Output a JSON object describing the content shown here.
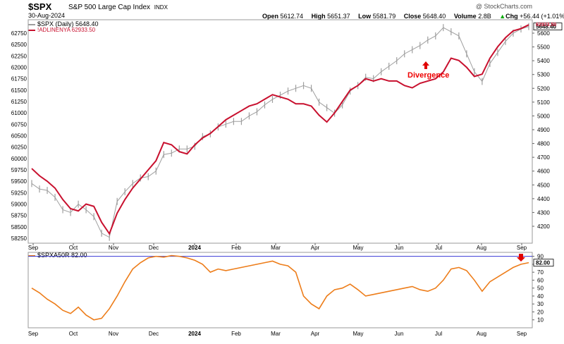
{
  "header": {
    "symbol": "$SPX",
    "description": "S&P 500 Large Cap Index",
    "exchange": "INDX",
    "date": "30-Aug-2024",
    "brand": "@ StockCharts.com",
    "open_label": "Open",
    "open": "5612.74",
    "high_label": "High",
    "high": "5651.37",
    "low_label": "Low",
    "low": "5581.79",
    "close_label": "Close",
    "close": "5648.40",
    "volume_label": "Volume",
    "volume": "2.8B",
    "chg_label": "Chg",
    "chg": "+56.44 (+1.01%)",
    "chg_arrow": "▲"
  },
  "legend": {
    "price": "$SPX (Daily) 5648.40",
    "adline": "!ADLINENYA 62933.50",
    "lower": "$SPXA50R 82.00"
  },
  "annotation": {
    "text": "Divergence"
  },
  "colors": {
    "price": "#9e9e9e",
    "adline": "#c8102e",
    "osc": "#ed7d1a",
    "refline": "#3a3ad6",
    "arrow": "#e00000"
  },
  "chart_data": [
    {
      "type": "line",
      "title": "$SPX S&P 500 Large Cap Index",
      "x_labels": [
        "Sep",
        "Oct",
        "Nov",
        "Dec",
        "2024",
        "Feb",
        "Mar",
        "Apr",
        "May",
        "Jun",
        "Jul",
        "Aug",
        "Sep"
      ],
      "left_axis_ticks": [
        "62750",
        "62500",
        "62250",
        "62000",
        "61750",
        "61500",
        "61250",
        "61000",
        "60750",
        "60500",
        "60250",
        "60000",
        "59750",
        "59500",
        "59250",
        "59000",
        "58750",
        "58500",
        "58250"
      ],
      "right_axis_ticks": [
        "5600",
        "5500",
        "5400",
        "5300",
        "5200",
        "5100",
        "5000",
        "4900",
        "4800",
        "4700",
        "4600",
        "4500",
        "4400",
        "4300",
        "4200"
      ],
      "right_last_value": "5648.40",
      "left_last_value": "62933.50",
      "series": [
        {
          "name": "$SPX (Daily)",
          "axis": "right",
          "values": [
            4510,
            4470,
            4460,
            4410,
            4320,
            4300,
            4360,
            4320,
            4270,
            4150,
            4120,
            4380,
            4450,
            4510,
            4550,
            4560,
            4600,
            4720,
            4730,
            4760,
            4760,
            4780,
            4850,
            4870,
            4920,
            4940,
            4960,
            4960,
            5000,
            5030,
            5080,
            5120,
            5150,
            5180,
            5200,
            5220,
            5200,
            5100,
            5060,
            5020,
            5080,
            5180,
            5220,
            5280,
            5270,
            5320,
            5360,
            5400,
            5450,
            5480,
            5510,
            5550,
            5580,
            5640,
            5610,
            5580,
            5450,
            5320,
            5250,
            5380,
            5460,
            5540,
            5600,
            5630,
            5648
          ]
        },
        {
          "name": "!ADLINENYA",
          "axis": "left",
          "values": [
            59780,
            59620,
            59500,
            59350,
            59100,
            58900,
            58850,
            59000,
            58950,
            58600,
            58350,
            58800,
            59100,
            59350,
            59550,
            59750,
            59950,
            60350,
            60300,
            60150,
            60100,
            60300,
            60450,
            60550,
            60700,
            60850,
            60950,
            61050,
            61150,
            61200,
            61300,
            61400,
            61350,
            61300,
            61200,
            61200,
            61150,
            60950,
            60800,
            61000,
            61250,
            61500,
            61600,
            61750,
            61700,
            61750,
            61700,
            61700,
            61600,
            61550,
            61650,
            61700,
            61750,
            61900,
            62200,
            62150,
            62000,
            61800,
            61850,
            62200,
            62450,
            62650,
            62800,
            62850,
            62933
          ]
        }
      ]
    },
    {
      "type": "line",
      "title": "$SPXA50R",
      "x_labels": [
        "Sep",
        "Oct",
        "Nov",
        "Dec",
        "2024",
        "Feb",
        "Mar",
        "Apr",
        "May",
        "Jun",
        "Jul",
        "Aug",
        "Sep"
      ],
      "y_ticks": [
        90,
        80,
        70,
        60,
        50,
        40,
        30,
        20,
        10
      ],
      "ylim": [
        0,
        95
      ],
      "reference_line": 90,
      "last_value": "82.00",
      "series": [
        {
          "name": "$SPXA50R",
          "values": [
            50,
            44,
            36,
            30,
            22,
            18,
            26,
            16,
            10,
            12,
            24,
            40,
            58,
            74,
            82,
            88,
            90,
            89,
            91,
            90,
            88,
            85,
            80,
            70,
            74,
            72,
            74,
            76,
            78,
            80,
            82,
            84,
            80,
            78,
            70,
            40,
            30,
            24,
            40,
            48,
            50,
            55,
            48,
            40,
            42,
            44,
            46,
            48,
            50,
            52,
            48,
            46,
            50,
            60,
            74,
            76,
            72,
            60,
            46,
            58,
            64,
            70,
            76,
            80,
            82
          ]
        }
      ]
    }
  ]
}
